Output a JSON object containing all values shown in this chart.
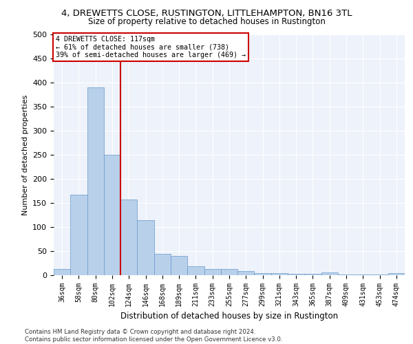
{
  "title": "4, DREWETTS CLOSE, RUSTINGTON, LITTLEHAMPTON, BN16 3TL",
  "subtitle": "Size of property relative to detached houses in Rustington",
  "xlabel": "Distribution of detached houses by size in Rustington",
  "ylabel": "Number of detached properties",
  "categories": [
    "36sqm",
    "58sqm",
    "80sqm",
    "102sqm",
    "124sqm",
    "146sqm",
    "168sqm",
    "189sqm",
    "211sqm",
    "233sqm",
    "255sqm",
    "277sqm",
    "299sqm",
    "321sqm",
    "343sqm",
    "365sqm",
    "387sqm",
    "409sqm",
    "431sqm",
    "453sqm",
    "474sqm"
  ],
  "values": [
    13,
    167,
    390,
    250,
    157,
    115,
    45,
    40,
    18,
    13,
    13,
    8,
    5,
    4,
    3,
    3,
    6,
    2,
    2,
    2,
    5
  ],
  "bar_color": "#b8d0ea",
  "bar_edgecolor": "#6699cc",
  "property_line_label": "4 DREWETTS CLOSE: 117sqm",
  "annotation_line1": "← 61% of detached houses are smaller (738)",
  "annotation_line2": "39% of semi-detached houses are larger (469) →",
  "annotation_box_color": "#cc0000",
  "vline_color": "#cc0000",
  "vline_x_index": 3.5,
  "ylim": [
    0,
    500
  ],
  "yticks": [
    0,
    50,
    100,
    150,
    200,
    250,
    300,
    350,
    400,
    450,
    500
  ],
  "bg_color": "#eef2fa",
  "grid_color": "#ffffff",
  "footer_line1": "Contains HM Land Registry data © Crown copyright and database right 2024.",
  "footer_line2": "Contains public sector information licensed under the Open Government Licence v3.0."
}
